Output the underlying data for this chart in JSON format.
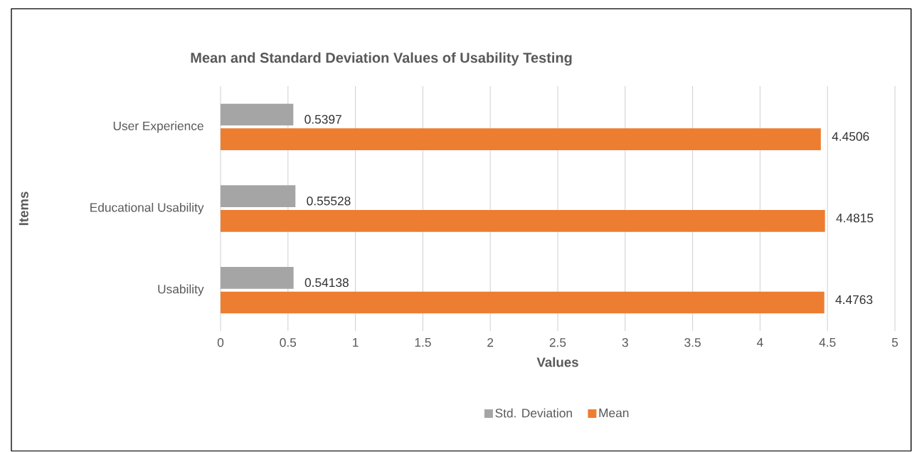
{
  "chart_data": {
    "type": "bar",
    "orientation": "horizontal",
    "title": "Mean and Standard Deviation Values of Usability Testing",
    "xlabel": "Values",
    "ylabel": "Items",
    "categories": [
      "User Experience",
      "Educational Usability",
      "Usability"
    ],
    "series": [
      {
        "name": "Std. Deviation",
        "color": "#a5a5a5",
        "values": [
          0.5397,
          0.55528,
          0.54138
        ]
      },
      {
        "name": "Mean",
        "color": "#ed7d31",
        "values": [
          4.4506,
          4.4815,
          4.4763
        ]
      }
    ],
    "xlim": [
      0,
      5
    ],
    "xticks": [
      0,
      0.5,
      1,
      1.5,
      2,
      2.5,
      3,
      3.5,
      4,
      4.5,
      5
    ],
    "grid": "x",
    "legend": "bottom",
    "data_labels": true
  }
}
